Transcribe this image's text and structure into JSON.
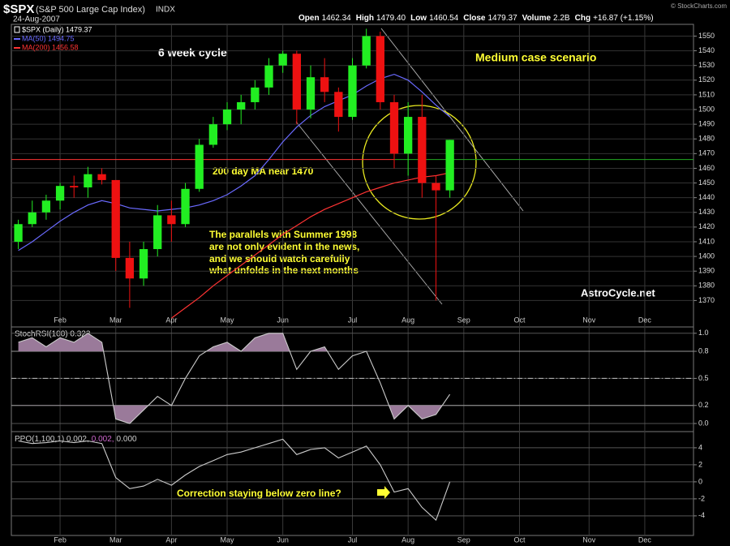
{
  "header": {
    "symbol": "$SPX",
    "name": "(S&P 500 Large Cap Index)",
    "exchange": "INDX",
    "date": "24-Aug-2007",
    "quote": [
      {
        "label": "Open",
        "value": "1462.34"
      },
      {
        "label": "High",
        "value": "1479.40"
      },
      {
        "label": "Low",
        "value": "1460.54"
      },
      {
        "label": "Close",
        "value": "1479.37"
      },
      {
        "label": "Volume",
        "value": "2.2B"
      },
      {
        "label": "Chg",
        "value": "+16.87 (+1.15%)"
      }
    ],
    "credit": "© StockCharts.com"
  },
  "chart_data": [
    {
      "type": "candlestick",
      "categories": [
        null,
        null,
        null,
        "Feb",
        null,
        null,
        null,
        "Mar",
        null,
        null,
        null,
        "Apr",
        null,
        null,
        null,
        "May",
        null,
        null,
        null,
        "Jun",
        null,
        null,
        null,
        null,
        "Jul",
        null,
        null,
        null,
        "Aug",
        null,
        null,
        null,
        "Sep",
        null,
        null,
        null,
        "Oct",
        null,
        null,
        null,
        null,
        "Nov",
        null,
        null,
        null,
        "Dec",
        null,
        null,
        null
      ],
      "ohlc": {
        "name": "$SPX (Daily) 1479.37",
        "up_color": "#22ee22",
        "down_color": "#ee1111",
        "open": [
          1410,
          1422,
          1430,
          1438,
          1448,
          1447,
          1456,
          1452,
          1399,
          1385,
          1405,
          1428,
          1422,
          1446,
          1476,
          1490,
          1500,
          1505,
          1515,
          1530,
          1538,
          1500,
          1522,
          1512,
          1495,
          1530,
          1550,
          1505,
          1470,
          1495,
          1450,
          1445,
          null,
          null,
          null,
          null,
          null,
          null,
          null,
          null,
          null,
          null,
          null,
          null,
          null,
          null,
          null,
          null,
          null
        ],
        "high": [
          1425,
          1438,
          1442,
          1450,
          1455,
          1461,
          1460,
          1452,
          1410,
          1410,
          1435,
          1438,
          1450,
          1480,
          1495,
          1505,
          1510,
          1520,
          1535,
          1540,
          1540,
          1530,
          1535,
          1515,
          1535,
          1555,
          1553,
          1510,
          1505,
          1510,
          1455,
          1479.4,
          null,
          null,
          null,
          null,
          null,
          null,
          null,
          null,
          null,
          null,
          null,
          null,
          null,
          null,
          null,
          null,
          null
        ],
        "low": [
          1405,
          1420,
          1425,
          1432,
          1440,
          1440,
          1449,
          1390,
          1365,
          1380,
          1400,
          1410,
          1420,
          1444,
          1474,
          1486,
          1490,
          1500,
          1510,
          1525,
          1490,
          1494,
          1505,
          1485,
          1493,
          1528,
          1500,
          1460,
          1455,
          1440,
          1370,
          1440,
          null,
          null,
          null,
          null,
          null,
          null,
          null,
          null,
          null,
          null,
          null,
          null,
          null,
          null,
          null,
          null,
          null
        ],
        "close": [
          1422,
          1430,
          1438,
          1448,
          1447,
          1456,
          1452,
          1399,
          1385,
          1405,
          1428,
          1422,
          1446,
          1476,
          1490,
          1500,
          1505,
          1515,
          1530,
          1538,
          1500,
          1522,
          1512,
          1495,
          1530,
          1550,
          1505,
          1470,
          1495,
          1450,
          1445,
          1479.37,
          null,
          null,
          null,
          null,
          null,
          null,
          null,
          null,
          null,
          null,
          null,
          null,
          null,
          null,
          null,
          null,
          null
        ]
      },
      "series": [
        {
          "name": "MA(50) 1494.75",
          "color": "#6a6aff",
          "values": [
            1404,
            1410,
            1417,
            1424,
            1430,
            1435,
            1438,
            1436,
            1433,
            1432,
            1431,
            1432,
            1433,
            1435,
            1438,
            1442,
            1448,
            1455,
            1466,
            1478,
            1488,
            1496,
            1502,
            1506,
            1510,
            1516,
            1521,
            1524,
            1520,
            1512,
            1503,
            1495,
            null,
            null,
            null,
            null,
            null,
            null,
            null,
            null,
            null,
            null,
            null,
            null,
            null,
            null,
            null,
            null,
            null
          ]
        },
        {
          "name": "MA(200) 1456.58",
          "color": "#ff3333",
          "values": [
            null,
            null,
            null,
            null,
            null,
            null,
            null,
            null,
            null,
            null,
            null,
            1358,
            1365,
            1372,
            1380,
            1387,
            1394,
            1401,
            1408,
            1415,
            1421,
            1427,
            1432,
            1436,
            1440,
            1444,
            1447,
            1450,
            1452,
            1454,
            1455,
            1457,
            null,
            null,
            null,
            null,
            null,
            null,
            null,
            null,
            null,
            null,
            null,
            null,
            null,
            null,
            null,
            null,
            null
          ]
        }
      ],
      "reference_line": 1466,
      "ylim": [
        1352,
        1558
      ],
      "yticks": [
        1370,
        1380,
        1390,
        1400,
        1410,
        1420,
        1430,
        1440,
        1450,
        1460,
        1470,
        1480,
        1490,
        1500,
        1510,
        1520,
        1530,
        1540,
        1550
      ],
      "grid": true,
      "annotations": {
        "cycle": "6 week cycle",
        "scenario": "Medium case scenario",
        "ma_note": "200 day MA near 1470",
        "paragraph": [
          "The parallels with Summer 1998",
          "are not only evident in the news,",
          "and we should watch carefully",
          "what unfolds in the next months"
        ],
        "site": "AstroCycle.net"
      }
    },
    {
      "type": "line",
      "title": "StochRSI(100) 0.323",
      "color": "#cccccc",
      "fill_color": "#9a7a9a",
      "values": [
        0.9,
        0.95,
        0.85,
        0.95,
        0.9,
        1.0,
        0.9,
        0.05,
        0.0,
        0.15,
        0.3,
        0.2,
        0.5,
        0.75,
        0.85,
        0.9,
        0.8,
        0.95,
        1.0,
        1.0,
        0.6,
        0.8,
        0.85,
        0.6,
        0.75,
        0.8,
        0.45,
        0.05,
        0.2,
        0.05,
        0.1,
        0.323,
        null,
        null,
        null,
        null,
        null,
        null,
        null,
        null,
        null,
        null,
        null,
        null,
        null,
        null,
        null,
        null,
        null
      ],
      "overbought": 0.8,
      "oversold": 0.2,
      "dashed_line": 0.5,
      "ylim": [
        -0.09,
        1.07
      ],
      "yticks": [
        {
          "value": 0,
          "label": "0.0"
        },
        0.2,
        0.5,
        0.8,
        {
          "value": 1,
          "label": "1.0"
        }
      ]
    },
    {
      "type": "line",
      "title_parts": [
        "PPO(1,100,1) 0.002,",
        "0.002,",
        "0.000"
      ],
      "title_colors": [
        "#cccccc",
        "#cc66cc",
        "#cccccc"
      ],
      "color": "#cccccc",
      "categories": [
        null,
        null,
        null,
        "Feb",
        null,
        null,
        null,
        "Mar",
        null,
        null,
        null,
        "Apr",
        null,
        null,
        null,
        "May",
        null,
        null,
        null,
        "Jun",
        null,
        null,
        null,
        null,
        "Jul",
        null,
        null,
        null,
        "Aug",
        null,
        null,
        null,
        "Sep",
        null,
        null,
        null,
        "Oct",
        null,
        null,
        null,
        null,
        "Nov",
        null,
        null,
        null,
        "Dec",
        null,
        null,
        null
      ],
      "values": [
        4.8,
        4.5,
        4.6,
        4.8,
        4.6,
        4.8,
        4.5,
        0.5,
        -0.8,
        -0.5,
        0.3,
        -0.4,
        0.8,
        1.8,
        2.5,
        3.2,
        3.5,
        4.0,
        4.5,
        5.0,
        3.2,
        3.8,
        4.0,
        2.8,
        3.5,
        4.2,
        2.0,
        -1.2,
        -0.8,
        -3.0,
        -4.5,
        0.002,
        null,
        null,
        null,
        null,
        null,
        null,
        null,
        null,
        null,
        null,
        null,
        null,
        null,
        null,
        null,
        null,
        null
      ],
      "ylim": [
        -6.3,
        5.9
      ],
      "yticks": [
        -4,
        -2,
        0,
        2,
        4
      ],
      "annotation": "Correction staying below zero line?"
    }
  ]
}
